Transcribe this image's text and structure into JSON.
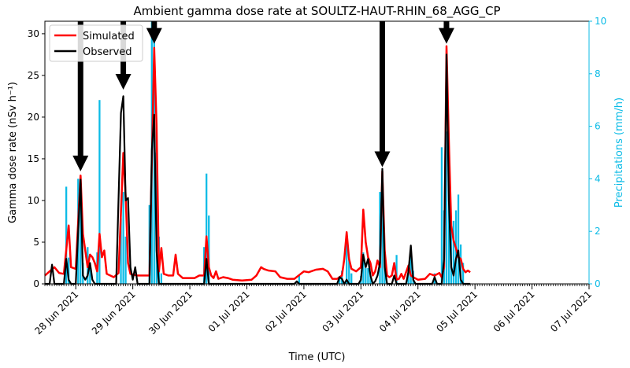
{
  "chart_data": {
    "type": "line",
    "title": "Ambient gamma dose rate at SOULTZ-HAUT-RHIN_68_AGG_CP",
    "xlabel": "Time (UTC)",
    "ylabel": "Gamma dose rate (nSv h⁻¹)",
    "y2label": "Precipitations (mm/h)",
    "xlim": [
      "2021-06-27T11:00",
      "2021-07-07T00:00"
    ],
    "ylim": [
      0,
      31.5
    ],
    "y2lim": [
      0,
      10
    ],
    "yticks": [
      0,
      5,
      10,
      15,
      20,
      25,
      30
    ],
    "y2ticks": [
      0,
      2,
      4,
      6,
      8,
      10
    ],
    "xticks": [
      {
        "x": "2021-06-28T00:00",
        "label": "28 Jun 2021"
      },
      {
        "x": "2021-06-29T00:00",
        "label": "29 Jun 2021"
      },
      {
        "x": "2021-06-30T00:00",
        "label": "30 Jun 2021"
      },
      {
        "x": "2021-07-01T00:00",
        "label": "01 Jul 2021"
      },
      {
        "x": "2021-07-02T00:00",
        "label": "02 Jul 2021"
      },
      {
        "x": "2021-07-03T00:00",
        "label": "03 Jul 2021"
      },
      {
        "x": "2021-07-04T00:00",
        "label": "04 Jul 2021"
      },
      {
        "x": "2021-07-05T00:00",
        "label": "05 Jul 2021"
      },
      {
        "x": "2021-07-06T00:00",
        "label": "06 Jul 2021"
      },
      {
        "x": "2021-07-07T00:00",
        "label": "07 Jul 2021"
      }
    ],
    "legend": {
      "placement": "top-left",
      "entries": [
        "Simulated",
        "Observed"
      ]
    },
    "series": [
      {
        "name": "Simulated",
        "color": "#ff0000",
        "points": [
          [
            "2021-06-27T11:00",
            1.0
          ],
          [
            "2021-06-27T13:00",
            1.5
          ],
          [
            "2021-06-27T15:00",
            2.0
          ],
          [
            "2021-06-27T17:00",
            1.3
          ],
          [
            "2021-06-27T19:00",
            1.2
          ],
          [
            "2021-06-27T21:00",
            7.0
          ],
          [
            "2021-06-27T22:00",
            2.0
          ],
          [
            "2021-06-28T00:00",
            1.8
          ],
          [
            "2021-06-28T02:00",
            13.0
          ],
          [
            "2021-06-28T03:00",
            6.0
          ],
          [
            "2021-06-28T05:00",
            2.0
          ],
          [
            "2021-06-28T06:00",
            3.5
          ],
          [
            "2021-06-28T07:00",
            3.2
          ],
          [
            "2021-06-28T08:00",
            2.5
          ],
          [
            "2021-06-28T09:00",
            1.5
          ],
          [
            "2021-06-28T10:00",
            6.0
          ],
          [
            "2021-06-28T11:00",
            3.2
          ],
          [
            "2021-06-28T12:00",
            4.0
          ],
          [
            "2021-06-28T13:00",
            1.2
          ],
          [
            "2021-06-28T16:00",
            0.8
          ],
          [
            "2021-06-28T18:00",
            1.3
          ],
          [
            "2021-06-28T20:00",
            15.7
          ],
          [
            "2021-06-28T21:00",
            10.5
          ],
          [
            "2021-06-28T22:00",
            2.5
          ],
          [
            "2021-06-28T23:00",
            1.2
          ],
          [
            "2021-06-29T02:00",
            1.0
          ],
          [
            "2021-06-29T05:00",
            1.0
          ],
          [
            "2021-06-29T07:00",
            1.0
          ],
          [
            "2021-06-29T09:00",
            28.3
          ],
          [
            "2021-06-29T10:00",
            19.0
          ],
          [
            "2021-06-29T11:00",
            1.5
          ],
          [
            "2021-06-29T12:00",
            4.3
          ],
          [
            "2021-06-29T13:00",
            1.2
          ],
          [
            "2021-06-29T15:00",
            1.0
          ],
          [
            "2021-06-29T17:00",
            1.0
          ],
          [
            "2021-06-29T18:00",
            3.5
          ],
          [
            "2021-06-29T19:00",
            1.2
          ],
          [
            "2021-06-29T21:00",
            0.7
          ],
          [
            "2021-06-30T00:00",
            0.7
          ],
          [
            "2021-06-30T02:00",
            0.7
          ],
          [
            "2021-06-30T04:00",
            1.0
          ],
          [
            "2021-06-30T06:00",
            1.0
          ],
          [
            "2021-06-30T07:00",
            5.7
          ],
          [
            "2021-06-30T08:00",
            2.0
          ],
          [
            "2021-06-30T09:00",
            1.0
          ],
          [
            "2021-06-30T10:00",
            0.7
          ],
          [
            "2021-06-30T11:00",
            1.5
          ],
          [
            "2021-06-30T12:00",
            0.6
          ],
          [
            "2021-06-30T14:00",
            0.8
          ],
          [
            "2021-06-30T16:00",
            0.7
          ],
          [
            "2021-06-30T18:00",
            0.5
          ],
          [
            "2021-06-30T22:00",
            0.4
          ],
          [
            "2021-07-01T02:00",
            0.5
          ],
          [
            "2021-07-01T04:00",
            1.0
          ],
          [
            "2021-07-01T06:00",
            2.0
          ],
          [
            "2021-07-01T07:00",
            1.8
          ],
          [
            "2021-07-01T09:00",
            1.6
          ],
          [
            "2021-07-01T12:00",
            1.5
          ],
          [
            "2021-07-01T14:00",
            0.8
          ],
          [
            "2021-07-01T17:00",
            0.6
          ],
          [
            "2021-07-01T20:00",
            0.6
          ],
          [
            "2021-07-02T00:00",
            1.5
          ],
          [
            "2021-07-02T02:00",
            1.4
          ],
          [
            "2021-07-02T05:00",
            1.7
          ],
          [
            "2021-07-02T08:00",
            1.8
          ],
          [
            "2021-07-02T10:00",
            1.5
          ],
          [
            "2021-07-02T12:00",
            0.6
          ],
          [
            "2021-07-02T14:00",
            0.6
          ],
          [
            "2021-07-02T16:00",
            1.0
          ],
          [
            "2021-07-02T17:00",
            3.0
          ],
          [
            "2021-07-02T18:00",
            6.2
          ],
          [
            "2021-07-02T19:00",
            3.0
          ],
          [
            "2021-07-02T20:00",
            1.8
          ],
          [
            "2021-07-02T22:00",
            1.5
          ],
          [
            "2021-07-03T00:00",
            2.0
          ],
          [
            "2021-07-03T01:00",
            8.9
          ],
          [
            "2021-07-03T02:00",
            5.0
          ],
          [
            "2021-07-03T03:00",
            3.2
          ],
          [
            "2021-07-03T04:00",
            2.5
          ],
          [
            "2021-07-03T05:00",
            1.0
          ],
          [
            "2021-07-03T06:00",
            1.5
          ],
          [
            "2021-07-03T07:00",
            2.8
          ],
          [
            "2021-07-03T08:00",
            2.0
          ],
          [
            "2021-07-03T09:00",
            13.5
          ],
          [
            "2021-07-03T10:00",
            4.0
          ],
          [
            "2021-07-03T11:00",
            1.0
          ],
          [
            "2021-07-03T12:00",
            0.8
          ],
          [
            "2021-07-03T13:00",
            1.0
          ],
          [
            "2021-07-03T14:00",
            2.5
          ],
          [
            "2021-07-03T15:00",
            0.5
          ],
          [
            "2021-07-03T16:00",
            0.6
          ],
          [
            "2021-07-03T17:00",
            1.2
          ],
          [
            "2021-07-03T18:00",
            0.6
          ],
          [
            "2021-07-03T20:00",
            2.2
          ],
          [
            "2021-07-03T21:00",
            1.0
          ],
          [
            "2021-07-03T22:00",
            0.8
          ],
          [
            "2021-07-04T00:00",
            0.5
          ],
          [
            "2021-07-04T03:00",
            0.6
          ],
          [
            "2021-07-04T05:00",
            1.2
          ],
          [
            "2021-07-04T07:00",
            1.0
          ],
          [
            "2021-07-04T09:00",
            1.3
          ],
          [
            "2021-07-04T10:00",
            0.8
          ],
          [
            "2021-07-04T11:00",
            2.0
          ],
          [
            "2021-07-04T12:00",
            28.5
          ],
          [
            "2021-07-04T13:00",
            17.0
          ],
          [
            "2021-07-04T14:00",
            7.0
          ],
          [
            "2021-07-04T15:00",
            5.2
          ],
          [
            "2021-07-04T16:00",
            4.3
          ],
          [
            "2021-07-04T17:00",
            3.2
          ],
          [
            "2021-07-04T18:00",
            3.0
          ],
          [
            "2021-07-04T19:00",
            1.8
          ],
          [
            "2021-07-04T20:00",
            1.4
          ],
          [
            "2021-07-04T21:00",
            1.6
          ],
          [
            "2021-07-04T22:00",
            1.4
          ]
        ]
      },
      {
        "name": "Observed",
        "color": "#000000",
        "points": [
          [
            "2021-06-27T11:00",
            0.0
          ],
          [
            "2021-06-27T13:00",
            0.0
          ],
          [
            "2021-06-27T14:00",
            2.3
          ],
          [
            "2021-06-27T15:00",
            0.0
          ],
          [
            "2021-06-27T19:00",
            0.0
          ],
          [
            "2021-06-27T20:00",
            3.0
          ],
          [
            "2021-06-27T21:00",
            0.5
          ],
          [
            "2021-06-27T22:00",
            0.0
          ],
          [
            "2021-06-28T00:00",
            0.0
          ],
          [
            "2021-06-28T02:00",
            12.5
          ],
          [
            "2021-06-28T03:00",
            1.0
          ],
          [
            "2021-06-28T04:00",
            0.5
          ],
          [
            "2021-06-28T05:00",
            1.0
          ],
          [
            "2021-06-28T06:00",
            2.5
          ],
          [
            "2021-06-28T07:00",
            0.5
          ],
          [
            "2021-06-28T08:00",
            0.0
          ],
          [
            "2021-06-28T17:00",
            0.0
          ],
          [
            "2021-06-28T19:00",
            20.5
          ],
          [
            "2021-06-28T20:00",
            22.5
          ],
          [
            "2021-06-28T21:00",
            10.0
          ],
          [
            "2021-06-28T22:00",
            10.3
          ],
          [
            "2021-06-28T23:00",
            2.0
          ],
          [
            "2021-06-29T00:00",
            0.5
          ],
          [
            "2021-06-29T01:00",
            2.0
          ],
          [
            "2021-06-29T02:00",
            0.0
          ],
          [
            "2021-06-29T07:00",
            0.0
          ],
          [
            "2021-06-29T08:00",
            16.0
          ],
          [
            "2021-06-29T09:00",
            20.3
          ],
          [
            "2021-06-29T10:00",
            4.0
          ],
          [
            "2021-06-29T11:00",
            0.0
          ],
          [
            "2021-06-30T06:00",
            0.0
          ],
          [
            "2021-06-30T07:00",
            3.0
          ],
          [
            "2021-06-30T08:00",
            0.0
          ],
          [
            "2021-07-01T20:00",
            0.0
          ],
          [
            "2021-07-01T21:00",
            0.3
          ],
          [
            "2021-07-01T22:00",
            0.0
          ],
          [
            "2021-07-02T14:00",
            0.0
          ],
          [
            "2021-07-02T15:00",
            0.8
          ],
          [
            "2021-07-02T16:00",
            0.6
          ],
          [
            "2021-07-02T17:00",
            0.0
          ],
          [
            "2021-07-02T18:00",
            0.5
          ],
          [
            "2021-07-02T19:00",
            0.0
          ],
          [
            "2021-07-02T23:00",
            0.0
          ],
          [
            "2021-07-03T00:00",
            0.5
          ],
          [
            "2021-07-03T01:00",
            3.5
          ],
          [
            "2021-07-03T02:00",
            2.0
          ],
          [
            "2021-07-03T03:00",
            3.0
          ],
          [
            "2021-07-03T04:00",
            1.0
          ],
          [
            "2021-07-03T05:00",
            0.0
          ],
          [
            "2021-07-03T06:00",
            0.3
          ],
          [
            "2021-07-03T07:00",
            1.0
          ],
          [
            "2021-07-03T08:00",
            2.5
          ],
          [
            "2021-07-03T09:00",
            13.8
          ],
          [
            "2021-07-03T10:00",
            2.0
          ],
          [
            "2021-07-03T11:00",
            0.0
          ],
          [
            "2021-07-03T13:00",
            0.0
          ],
          [
            "2021-07-03T14:00",
            1.0
          ],
          [
            "2021-07-03T15:00",
            0.0
          ],
          [
            "2021-07-03T19:00",
            0.0
          ],
          [
            "2021-07-03T20:00",
            1.5
          ],
          [
            "2021-07-03T21:00",
            4.6
          ],
          [
            "2021-07-03T22:00",
            0.5
          ],
          [
            "2021-07-03T23:00",
            0.0
          ],
          [
            "2021-07-04T06:00",
            0.0
          ],
          [
            "2021-07-04T07:00",
            0.8
          ],
          [
            "2021-07-04T08:00",
            0.0
          ],
          [
            "2021-07-04T10:00",
            0.0
          ],
          [
            "2021-07-04T11:00",
            3.0
          ],
          [
            "2021-07-04T12:00",
            27.5
          ],
          [
            "2021-07-04T13:00",
            10.0
          ],
          [
            "2021-07-04T14:00",
            2.0
          ],
          [
            "2021-07-04T15:00",
            1.0
          ],
          [
            "2021-07-04T16:00",
            3.0
          ],
          [
            "2021-07-04T17:00",
            4.0
          ],
          [
            "2021-07-04T18:00",
            0.5
          ],
          [
            "2021-07-04T19:00",
            0.0
          ],
          [
            "2021-07-04T22:00",
            0.0
          ]
        ]
      }
    ],
    "precipitation": {
      "name": "Precipitations",
      "axis": "right",
      "color": "#0bbbe6",
      "points": [
        [
          "2021-06-27T20:00",
          3.7
        ],
        [
          "2021-06-27T21:00",
          1.0
        ],
        [
          "2021-06-28T01:00",
          4.0
        ],
        [
          "2021-06-28T02:00",
          4.0
        ],
        [
          "2021-06-28T03:00",
          0.8
        ],
        [
          "2021-06-28T05:00",
          1.4
        ],
        [
          "2021-06-28T06:00",
          0.8
        ],
        [
          "2021-06-28T09:00",
          1.2
        ],
        [
          "2021-06-28T10:00",
          7.0
        ],
        [
          "2021-06-28T19:00",
          2.5
        ],
        [
          "2021-06-28T20:00",
          3.5
        ],
        [
          "2021-06-28T21:00",
          1.8
        ],
        [
          "2021-06-29T07:00",
          3.0
        ],
        [
          "2021-06-29T08:00",
          10.0
        ],
        [
          "2021-06-29T09:00",
          10.0
        ],
        [
          "2021-06-29T10:00",
          5.0
        ],
        [
          "2021-06-29T11:00",
          1.8
        ],
        [
          "2021-06-29T12:00",
          0.4
        ],
        [
          "2021-06-30T06:00",
          1.4
        ],
        [
          "2021-06-30T07:00",
          4.2
        ],
        [
          "2021-06-30T08:00",
          2.6
        ],
        [
          "2021-07-01T22:00",
          0.3
        ],
        [
          "2021-07-02T15:00",
          0.3
        ],
        [
          "2021-07-02T16:00",
          0.5
        ],
        [
          "2021-07-02T18:00",
          1.8
        ],
        [
          "2021-07-02T19:00",
          1.0
        ],
        [
          "2021-07-02T20:00",
          0.4
        ],
        [
          "2021-07-03T00:00",
          0.3
        ],
        [
          "2021-07-03T01:00",
          1.2
        ],
        [
          "2021-07-03T02:00",
          0.6
        ],
        [
          "2021-07-03T03:00",
          0.6
        ],
        [
          "2021-07-03T04:00",
          0.3
        ],
        [
          "2021-07-03T08:00",
          3.5
        ],
        [
          "2021-07-03T09:00",
          4.3
        ],
        [
          "2021-07-03T10:00",
          1.0
        ],
        [
          "2021-07-03T15:00",
          1.1
        ],
        [
          "2021-07-03T20:00",
          0.7
        ],
        [
          "2021-07-03T21:00",
          1.2
        ],
        [
          "2021-07-03T22:00",
          0.5
        ],
        [
          "2021-07-04T07:00",
          0.4
        ],
        [
          "2021-07-04T10:00",
          5.2
        ],
        [
          "2021-07-04T11:00",
          2.8
        ],
        [
          "2021-07-04T12:00",
          5.8
        ],
        [
          "2021-07-04T13:00",
          3.8
        ],
        [
          "2021-07-04T14:00",
          2.2
        ],
        [
          "2021-07-04T15:00",
          2.4
        ],
        [
          "2021-07-04T16:00",
          2.8
        ],
        [
          "2021-07-04T17:00",
          3.4
        ],
        [
          "2021-07-04T18:00",
          1.5
        ],
        [
          "2021-07-04T19:00",
          0.8
        ]
      ]
    },
    "annotations": [
      {
        "type": "down-arrow",
        "x": "2021-06-28T02:00",
        "y": 13.5
      },
      {
        "type": "down-arrow",
        "x": "2021-06-28T20:00",
        "y": 23.3
      },
      {
        "type": "down-arrow",
        "x": "2021-06-29T09:00",
        "y": 28.8
      },
      {
        "type": "down-arrow",
        "x": "2021-07-03T09:00",
        "y": 14.0
      },
      {
        "type": "down-arrow",
        "x": "2021-07-04T12:00",
        "y": 28.8
      }
    ]
  }
}
